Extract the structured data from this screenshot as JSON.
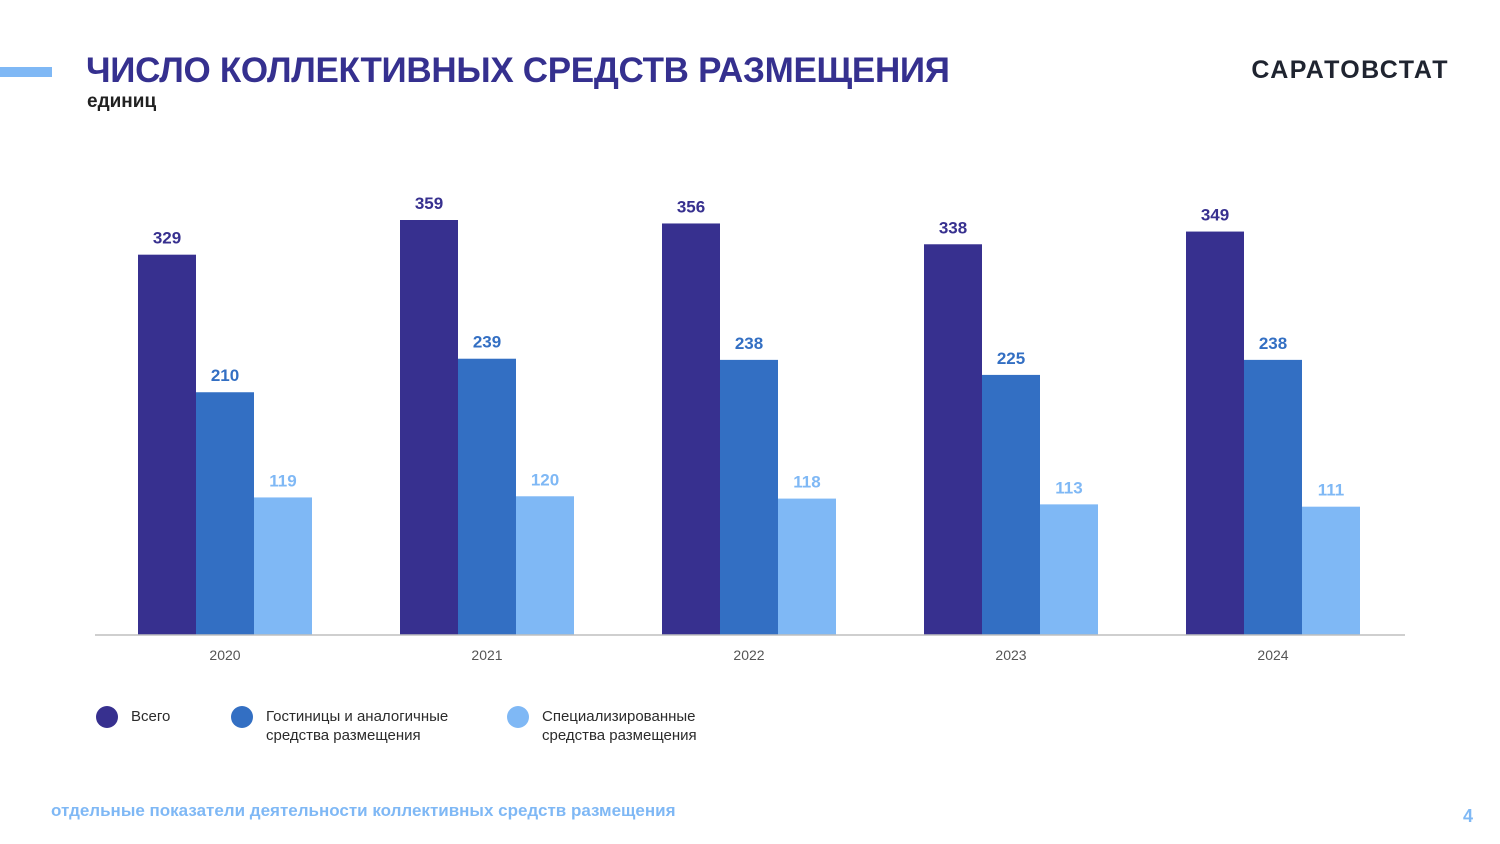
{
  "header": {
    "title": "ЧИСЛО КОЛЛЕКТИВНЫХ СРЕДСТВ РАЗМЕЩЕНИЯ",
    "subtitle": "единиц",
    "brand": "САРАТОВСТАТ"
  },
  "footer": {
    "text": "отдельные показатели деятельности коллективных средств размещения",
    "page_number": "4"
  },
  "colors": {
    "title": "#35308f",
    "accent": "#7fb8f5"
  },
  "chart_data": {
    "type": "bar",
    "title": "ЧИСЛО КОЛЛЕКТИВНЫХ СРЕДСТВ РАЗМЕЩЕНИЯ",
    "ylabel": "единиц",
    "xlabel": "",
    "categories": [
      "2020",
      "2021",
      "2022",
      "2023",
      "2024"
    ],
    "series": [
      {
        "name": "Всего",
        "values": [
          329,
          359,
          356,
          338,
          349
        ],
        "color": "#37308f"
      },
      {
        "name": "Гостиницы и аналогичные средства размещения",
        "legend_label": "Гостиницы и аналогичные\nсредства размещения",
        "values": [
          210,
          239,
          238,
          225,
          238
        ],
        "color": "#336fc3"
      },
      {
        "name": "Специализированные средства размещения",
        "legend_label": "Специализированные\nсредства размещения",
        "values": [
          119,
          120,
          118,
          113,
          111
        ],
        "color": "#7fb8f5"
      }
    ],
    "label_colors": [
      "#37308f",
      "#336fc3",
      "#7fb8f5"
    ],
    "ylim": [
      0,
      359
    ],
    "grid": false,
    "legend": "bottom-left"
  }
}
